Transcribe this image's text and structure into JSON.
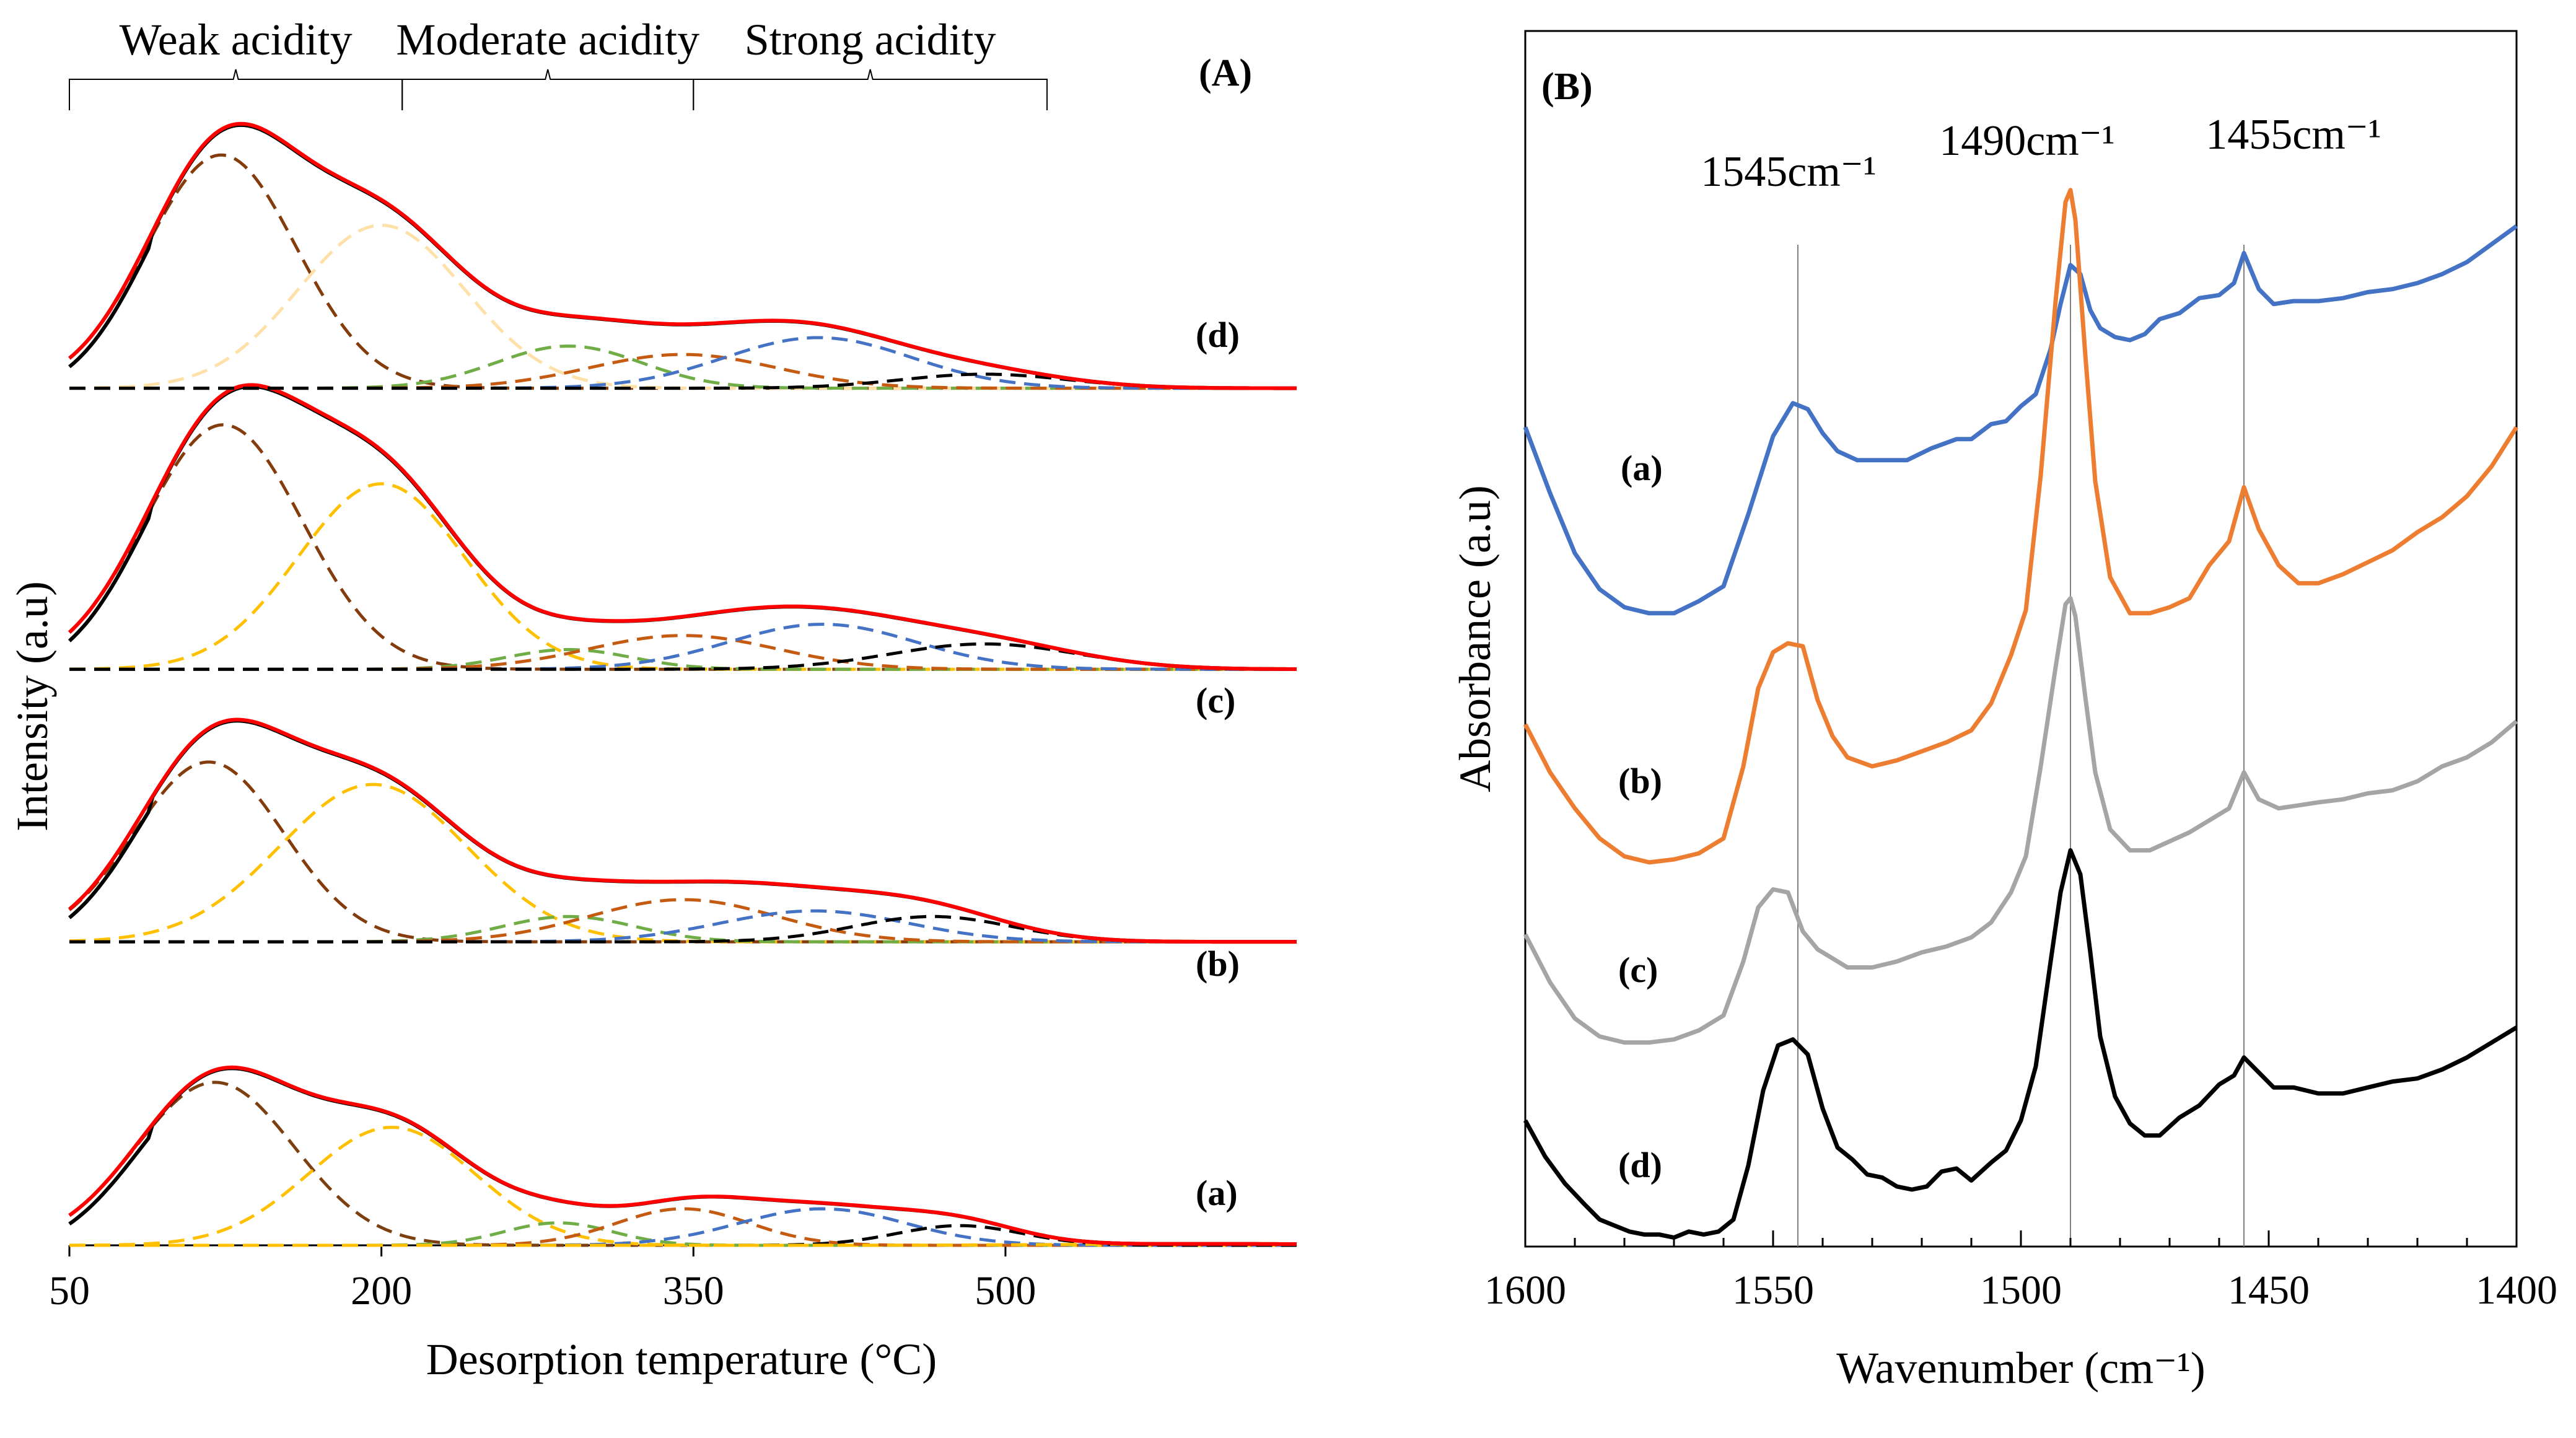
{
  "chart_data": [
    {
      "type": "line",
      "panel": "(A)",
      "title": "",
      "xlabel": "Desorption temperature (°C)",
      "ylabel": "Intensity (a.u)",
      "xlim": [
        50,
        640
      ],
      "xticks": [
        50,
        200,
        350,
        500
      ],
      "ylim": [
        0,
        4.2
      ],
      "grid": false,
      "acidity_regions": [
        {
          "label": "Weak acidity",
          "range": [
            50,
            210
          ]
        },
        {
          "label": "Moderate acidity",
          "range": [
            210,
            350
          ]
        },
        {
          "label": "Strong acidity",
          "range": [
            350,
            520
          ]
        }
      ],
      "samples": [
        {
          "name": "(a)",
          "offset": 0,
          "peaks": [
            {
              "center": 120,
              "width": 38,
              "height": 0.58,
              "color": "#7b3f10"
            },
            {
              "center": 205,
              "width": 40,
              "height": 0.42,
              "color": "#ffc000"
            },
            {
              "center": 285,
              "width": 26,
              "height": 0.08,
              "color": "#70ad47"
            },
            {
              "center": 345,
              "width": 32,
              "height": 0.13,
              "color": "#c55a11"
            },
            {
              "center": 412,
              "width": 40,
              "height": 0.13,
              "color": "#4472c4"
            },
            {
              "center": 478,
              "width": 30,
              "height": 0.07,
              "color": "#000000"
            },
            {
              "center": 600,
              "width": 70,
              "height": 0.005,
              "color": "#ffc000"
            }
          ]
        },
        {
          "name": "(b)",
          "offset": 1.08,
          "peaks": [
            {
              "center": 117,
              "width": 36,
              "height": 0.64,
              "color": "#843c0c"
            },
            {
              "center": 196,
              "width": 45,
              "height": 0.56,
              "color": "#ffc000"
            },
            {
              "center": 290,
              "width": 32,
              "height": 0.09,
              "color": "#70ad47"
            },
            {
              "center": 345,
              "width": 45,
              "height": 0.15,
              "color": "#c55a11"
            },
            {
              "center": 408,
              "width": 45,
              "height": 0.11,
              "color": "#4472c4"
            },
            {
              "center": 465,
              "width": 38,
              "height": 0.09,
              "color": "#000000"
            }
          ]
        },
        {
          "name": "(c)",
          "offset": 2.05,
          "peaks": [
            {
              "center": 124,
              "width": 38,
              "height": 0.87,
              "color": "#843c0c"
            },
            {
              "center": 200,
              "width": 40,
              "height": 0.66,
              "color": "#ffc000"
            },
            {
              "center": 290,
              "width": 30,
              "height": 0.07,
              "color": "#70ad47"
            },
            {
              "center": 345,
              "width": 45,
              "height": 0.12,
              "color": "#c55a11"
            },
            {
              "center": 412,
              "width": 45,
              "height": 0.16,
              "color": "#4472c4"
            },
            {
              "center": 490,
              "width": 45,
              "height": 0.09,
              "color": "#000000"
            }
          ]
        },
        {
          "name": "(d)",
          "offset": 3.05,
          "peaks": [
            {
              "center": 123,
              "width": 36,
              "height": 0.83,
              "color": "#843c0c"
            },
            {
              "center": 200,
              "width": 40,
              "height": 0.58,
              "color": "#ffe0a8"
            },
            {
              "center": 290,
              "width": 35,
              "height": 0.15,
              "color": "#70ad47"
            },
            {
              "center": 345,
              "width": 45,
              "height": 0.12,
              "color": "#c55a11"
            },
            {
              "center": 410,
              "width": 45,
              "height": 0.18,
              "color": "#4472c4"
            },
            {
              "center": 490,
              "width": 40,
              "height": 0.05,
              "color": "#000000"
            }
          ]
        }
      ],
      "series_style": {
        "experimental": "#000000",
        "fitted": "#ff0000"
      }
    },
    {
      "type": "line",
      "panel": "(B)",
      "title": "",
      "xlabel": "Wavenumber (cm⁻¹)",
      "ylabel": "Absorbance (a.u)",
      "xlim": [
        1600,
        1400
      ],
      "x_reversed": true,
      "xticks": [
        1600,
        1550,
        1500,
        1450,
        1400
      ],
      "ylim": [
        0,
        4.05
      ],
      "grid": false,
      "reference_lines": [
        {
          "x": 1545,
          "label": "1545cm⁻¹"
        },
        {
          "x": 1490,
          "label": "1490cm⁻¹"
        },
        {
          "x": 1455,
          "label": "1455cm⁻¹"
        }
      ],
      "series": [
        {
          "name": "(a)",
          "color": "#4472c4",
          "x": [
            1600,
            1595,
            1590,
            1585,
            1580,
            1575,
            1570,
            1565,
            1560,
            1555,
            1550,
            1546,
            1543,
            1540,
            1537,
            1533,
            1528,
            1523,
            1518,
            1513,
            1510,
            1506,
            1503,
            1500,
            1497,
            1494,
            1492,
            1490,
            1488,
            1486,
            1484,
            1481,
            1478,
            1475,
            1472,
            1468,
            1464,
            1460,
            1457,
            1455,
            1452,
            1449,
            1445,
            1440,
            1435,
            1430,
            1425,
            1420,
            1415,
            1410,
            1405,
            1400
          ],
          "y": [
            2.73,
            2.51,
            2.31,
            2.19,
            2.13,
            2.11,
            2.11,
            2.15,
            2.2,
            2.44,
            2.7,
            2.81,
            2.79,
            2.71,
            2.65,
            2.62,
            2.62,
            2.62,
            2.66,
            2.69,
            2.69,
            2.74,
            2.75,
            2.8,
            2.84,
            2.99,
            3.14,
            3.27,
            3.24,
            3.12,
            3.06,
            3.03,
            3.02,
            3.04,
            3.09,
            3.11,
            3.16,
            3.17,
            3.21,
            3.31,
            3.19,
            3.14,
            3.15,
            3.15,
            3.16,
            3.18,
            3.19,
            3.21,
            3.24,
            3.28,
            3.34,
            3.4
          ]
        },
        {
          "name": "(b)",
          "color": "#ed7d31",
          "x": [
            1600,
            1595,
            1590,
            1585,
            1580,
            1575,
            1570,
            1565,
            1560,
            1556,
            1553,
            1550,
            1547,
            1544,
            1541,
            1538,
            1535,
            1530,
            1525,
            1520,
            1515,
            1510,
            1506,
            1502,
            1499,
            1496,
            1493,
            1491,
            1490,
            1489,
            1487,
            1485,
            1482,
            1478,
            1474,
            1470,
            1466,
            1462,
            1458,
            1455,
            1452,
            1448,
            1444,
            1440,
            1435,
            1430,
            1425,
            1420,
            1415,
            1410,
            1405,
            1400
          ],
          "y": [
            1.74,
            1.58,
            1.46,
            1.36,
            1.3,
            1.28,
            1.29,
            1.31,
            1.36,
            1.6,
            1.86,
            1.98,
            2.01,
            2.0,
            1.82,
            1.7,
            1.63,
            1.6,
            1.62,
            1.65,
            1.68,
            1.72,
            1.81,
            1.97,
            2.12,
            2.57,
            3.15,
            3.48,
            3.52,
            3.42,
            2.97,
            2.55,
            2.23,
            2.11,
            2.11,
            2.13,
            2.16,
            2.27,
            2.35,
            2.53,
            2.39,
            2.27,
            2.21,
            2.21,
            2.24,
            2.28,
            2.32,
            2.38,
            2.43,
            2.5,
            2.6,
            2.73
          ]
        },
        {
          "name": "(c)",
          "color": "#a5a5a5",
          "x": [
            1600,
            1595,
            1590,
            1585,
            1580,
            1575,
            1570,
            1565,
            1560,
            1556,
            1553,
            1550,
            1547,
            1544,
            1541,
            1538,
            1535,
            1530,
            1525,
            1520,
            1515,
            1510,
            1506,
            1502,
            1499,
            1496,
            1493,
            1491,
            1490,
            1489,
            1487,
            1485,
            1482,
            1478,
            1474,
            1470,
            1466,
            1462,
            1458,
            1455,
            1452,
            1448,
            1444,
            1440,
            1435,
            1430,
            1425,
            1420,
            1415,
            1410,
            1405,
            1400
          ],
          "y": [
            1.04,
            0.88,
            0.76,
            0.7,
            0.68,
            0.68,
            0.69,
            0.72,
            0.77,
            0.95,
            1.13,
            1.19,
            1.18,
            1.05,
            0.99,
            0.96,
            0.93,
            0.93,
            0.95,
            0.98,
            1.0,
            1.03,
            1.08,
            1.18,
            1.3,
            1.6,
            1.93,
            2.14,
            2.16,
            2.1,
            1.83,
            1.58,
            1.39,
            1.32,
            1.32,
            1.35,
            1.38,
            1.42,
            1.46,
            1.58,
            1.49,
            1.46,
            1.47,
            1.48,
            1.49,
            1.51,
            1.52,
            1.55,
            1.6,
            1.63,
            1.68,
            1.75
          ]
        },
        {
          "name": "(d)",
          "color": "#000000",
          "x": [
            1600,
            1596,
            1592,
            1588,
            1585,
            1582,
            1579,
            1576,
            1573,
            1570,
            1567,
            1564,
            1561,
            1558,
            1555,
            1552,
            1549,
            1546,
            1543,
            1540,
            1537,
            1534,
            1531,
            1528,
            1525,
            1522,
            1519,
            1516,
            1513,
            1510,
            1506,
            1503,
            1500,
            1497,
            1494,
            1492,
            1490,
            1488,
            1486,
            1484,
            1481,
            1478,
            1475,
            1472,
            1468,
            1464,
            1460,
            1457,
            1455,
            1452,
            1449,
            1445,
            1440,
            1435,
            1430,
            1425,
            1420,
            1415,
            1410,
            1405,
            1400
          ],
          "y": [
            0.42,
            0.3,
            0.21,
            0.14,
            0.09,
            0.07,
            0.05,
            0.04,
            0.04,
            0.03,
            0.05,
            0.04,
            0.05,
            0.09,
            0.27,
            0.52,
            0.67,
            0.69,
            0.64,
            0.46,
            0.33,
            0.29,
            0.24,
            0.23,
            0.2,
            0.19,
            0.2,
            0.25,
            0.26,
            0.22,
            0.28,
            0.32,
            0.42,
            0.6,
            0.95,
            1.18,
            1.32,
            1.24,
            0.98,
            0.7,
            0.5,
            0.41,
            0.37,
            0.37,
            0.43,
            0.47,
            0.54,
            0.57,
            0.63,
            0.58,
            0.53,
            0.53,
            0.51,
            0.51,
            0.53,
            0.55,
            0.56,
            0.59,
            0.63,
            0.68,
            0.73
          ]
        }
      ]
    }
  ]
}
